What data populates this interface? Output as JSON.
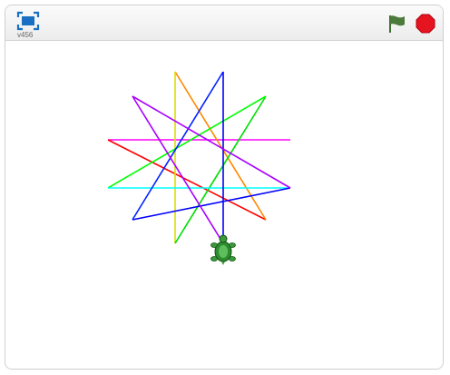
{
  "toolbar": {
    "version_label": "v456",
    "fullscreen_icon": "fullscreen-icon",
    "green_flag_icon": "green-flag-icon",
    "stop_icon": "stop-sign-icon",
    "colors": {
      "flag": "#4b7a3a",
      "stop": "#e6141e",
      "fullscreen": "#1a6fc2"
    }
  },
  "stage": {
    "sprite": "turtle",
    "sprite_color": "#3a9a3a",
    "star": {
      "points": 10,
      "colors": [
        "#ff00ff",
        "#ff0000",
        "#ff8800",
        "#dddd00",
        "#00ff00",
        "#00dd00",
        "#00ffff",
        "#0000ff",
        "#0022ff",
        "#aa00ff",
        "#ff0066"
      ]
    }
  }
}
